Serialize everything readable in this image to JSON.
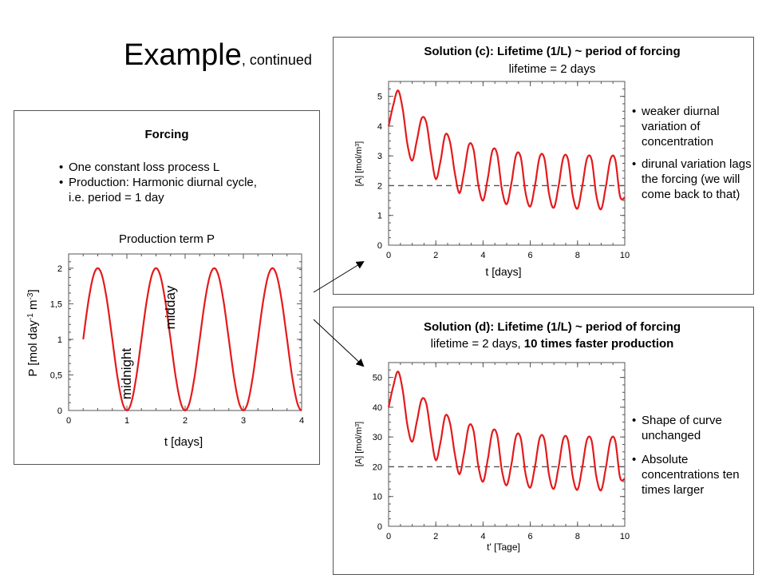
{
  "slide": {
    "title": "Example",
    "subtitle": ", continued"
  },
  "forcing": {
    "heading": "Forcing",
    "bullets": [
      "One constant loss process L",
      "Production: Harmonic diurnal cycle,",
      "i.e. period = 1 day"
    ],
    "plot_title": "Production term P",
    "annotation_midday": "midday",
    "annotation_midnight": "midnight"
  },
  "panel_c": {
    "title": "Solution (c): Lifetime (1/L) ~ period of forcing",
    "subtitle": "lifetime = 2 days",
    "notes": [
      "weaker diurnal variation of concentration",
      "dirunal variation lags the forcing (we will come back to that)"
    ]
  },
  "panel_d": {
    "title": "Solution (d): Lifetime (1/L) ~ period of forcing",
    "subtitle_plain": "lifetime = 2 days, ",
    "subtitle_bold": "10 times faster production",
    "notes": [
      "Shape of curve unchanged",
      "Absolute concentrations ten times larger"
    ]
  },
  "colors": {
    "curve": "#e41a1c",
    "frame": "#555555",
    "dash": "#555555"
  },
  "chart_data": [
    {
      "type": "line",
      "xlabel": "t [days]",
      "ylabel": "P [mol day-1 m-3]",
      "xlim": [
        0,
        4
      ],
      "ylim": [
        0,
        2.2
      ],
      "xticks": [
        0,
        1,
        2,
        3,
        4
      ],
      "xtick_labels": [
        "0",
        "1",
        "2",
        "3",
        "4"
      ],
      "yticks": [
        0,
        0.5,
        1,
        1.5,
        2
      ],
      "ytick_labels": [
        "0",
        "0,5",
        "1",
        "1,5",
        "2"
      ],
      "series": [
        {
          "formula": "1 - cos(2*pi*t)",
          "x_range": [
            0.25,
            4
          ]
        }
      ]
    },
    {
      "type": "line",
      "xlabel": "t [days]",
      "ylabel": "[A] [mol/m3]",
      "xlim": [
        0,
        10
      ],
      "ylim": [
        0,
        5.5
      ],
      "xticks": [
        0,
        2,
        4,
        6,
        8,
        10
      ],
      "xtick_labels": [
        "0",
        "2",
        "4",
        "6",
        "8",
        "10"
      ],
      "yticks": [
        0,
        1,
        2,
        3,
        4,
        5
      ],
      "ytick_labels": [
        "0",
        "1",
        "2",
        "3",
        "4",
        "5"
      ],
      "reference_line": 2,
      "series": [
        {
          "x": [
            0,
            0.2,
            0.4,
            0.6,
            0.8,
            1.0,
            1.2,
            1.4,
            1.6,
            1.8,
            2.0,
            2.2,
            2.4,
            2.6,
            2.8,
            3.0,
            3.2,
            3.4,
            3.6,
            3.8,
            4.0,
            4.2,
            4.4,
            4.6,
            4.8,
            5.0,
            5.2,
            5.4,
            5.6,
            5.8,
            6.0,
            6.2,
            6.4,
            6.6,
            6.8,
            7.0,
            7.2,
            7.4,
            7.6,
            7.8,
            8.0,
            8.2,
            8.4,
            8.6,
            8.8,
            9.0,
            9.2,
            9.4,
            9.6,
            9.8,
            10.0
          ],
          "y": [
            4.0,
            4.71,
            5.2,
            4.56,
            3.38,
            2.84,
            3.53,
            4.26,
            4.11,
            3.05,
            2.22,
            2.83,
            3.71,
            3.47,
            2.45,
            1.75,
            2.46,
            3.37,
            3.2,
            2.03,
            1.5,
            2.25,
            3.18,
            3.05,
            1.87,
            1.38,
            2.08,
            3.03,
            2.94,
            1.76,
            1.3,
            2.02,
            2.97,
            2.9,
            1.7,
            1.26,
            2.0,
            2.94,
            2.87,
            1.66,
            1.23,
            1.98,
            2.91,
            2.86,
            1.65,
            1.21,
            1.97,
            2.9,
            2.86,
            1.64,
            1.6
          ]
        }
      ]
    },
    {
      "type": "line",
      "xlabel": "t' [Tage]",
      "ylabel": "[A] [mol/m3]",
      "xlim": [
        0,
        10
      ],
      "ylim": [
        0,
        55
      ],
      "xticks": [
        0,
        2,
        4,
        6,
        8,
        10
      ],
      "xtick_labels": [
        "0",
        "2",
        "4",
        "6",
        "8",
        "10"
      ],
      "yticks": [
        0,
        10,
        20,
        30,
        40,
        50
      ],
      "ytick_labels": [
        "0",
        "10",
        "20",
        "30",
        "40",
        "50"
      ],
      "reference_line": 20,
      "series": [
        {
          "x": [
            0,
            0.2,
            0.4,
            0.6,
            0.8,
            1.0,
            1.2,
            1.4,
            1.6,
            1.8,
            2.0,
            2.2,
            2.4,
            2.6,
            2.8,
            3.0,
            3.2,
            3.4,
            3.6,
            3.8,
            4.0,
            4.2,
            4.4,
            4.6,
            4.8,
            5.0,
            5.2,
            5.4,
            5.6,
            5.8,
            6.0,
            6.2,
            6.4,
            6.6,
            6.8,
            7.0,
            7.2,
            7.4,
            7.6,
            7.8,
            8.0,
            8.2,
            8.4,
            8.6,
            8.8,
            9.0,
            9.2,
            9.4,
            9.6,
            9.8,
            10.0
          ],
          "y": [
            40,
            47.1,
            52,
            45.6,
            33.8,
            28.4,
            35.3,
            42.6,
            41.1,
            30.5,
            22.2,
            28.3,
            37.1,
            34.7,
            24.5,
            17.5,
            24.6,
            33.7,
            32.0,
            20.3,
            15.0,
            22.5,
            31.8,
            30.5,
            18.7,
            13.8,
            20.8,
            30.3,
            29.4,
            17.6,
            13.0,
            20.2,
            29.7,
            29.0,
            17.0,
            12.6,
            20.0,
            29.4,
            28.7,
            16.6,
            12.3,
            19.8,
            29.1,
            28.6,
            16.5,
            12.1,
            19.7,
            29.0,
            28.6,
            16.4,
            16.0
          ]
        }
      ]
    }
  ]
}
